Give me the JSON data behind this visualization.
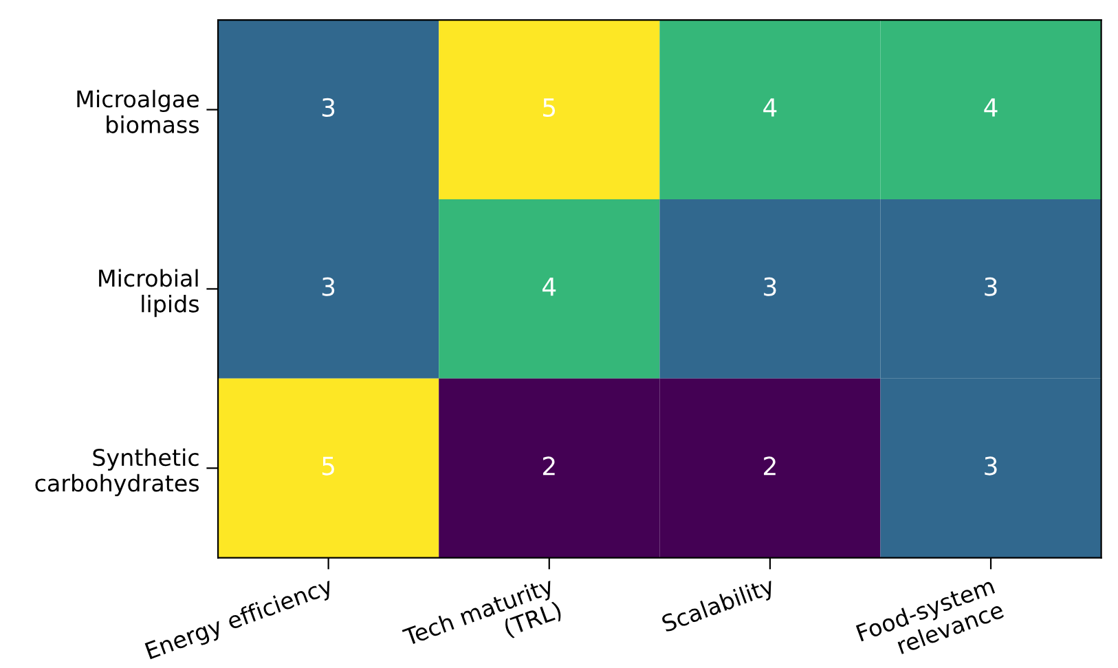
{
  "chart_data": {
    "type": "heatmap",
    "categories": [
      "Energy efficiency",
      "Tech maturity\n(TRL)",
      "Scalability",
      "Food-system\nrelevance"
    ],
    "y_categories": [
      "Microalgae\nbiomass",
      "Microbial\nlipids",
      "Synthetic\ncarbohydrates"
    ],
    "cells": [
      [
        3,
        5,
        4,
        4
      ],
      [
        3,
        4,
        3,
        3
      ],
      [
        5,
        2,
        2,
        3
      ]
    ],
    "data_labels": true
  }
}
